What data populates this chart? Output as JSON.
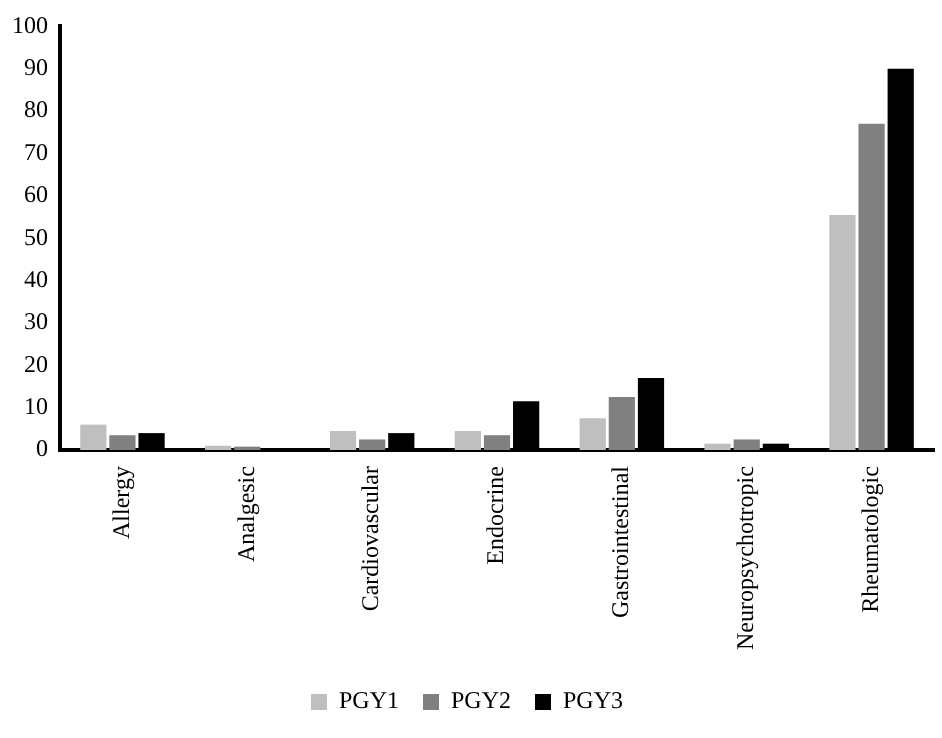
{
  "chart_data": {
    "type": "bar",
    "categories": [
      "Allergy",
      "Analgesic",
      "Cardiovascular",
      "Endocrine",
      "Gastrointestinal",
      "Neuropsychotropic",
      "Rheumatologic"
    ],
    "series": [
      {
        "name": "PGY1",
        "color": "#bfbfbf",
        "values": [
          6,
          1,
          4.5,
          4.5,
          7.5,
          1.5,
          55.5
        ]
      },
      {
        "name": "PGY2",
        "color": "#808080",
        "values": [
          3.5,
          0.8,
          2.5,
          3.5,
          12.5,
          2.5,
          77
        ]
      },
      {
        "name": "PGY3",
        "color": "#000000",
        "values": [
          4,
          0,
          4,
          11.5,
          17,
          1.5,
          90
        ]
      }
    ],
    "ylim": [
      0,
      100
    ],
    "yticks": [
      0,
      10,
      20,
      30,
      40,
      50,
      60,
      70,
      80,
      90,
      100
    ],
    "grid": false,
    "legend": "bottom"
  }
}
